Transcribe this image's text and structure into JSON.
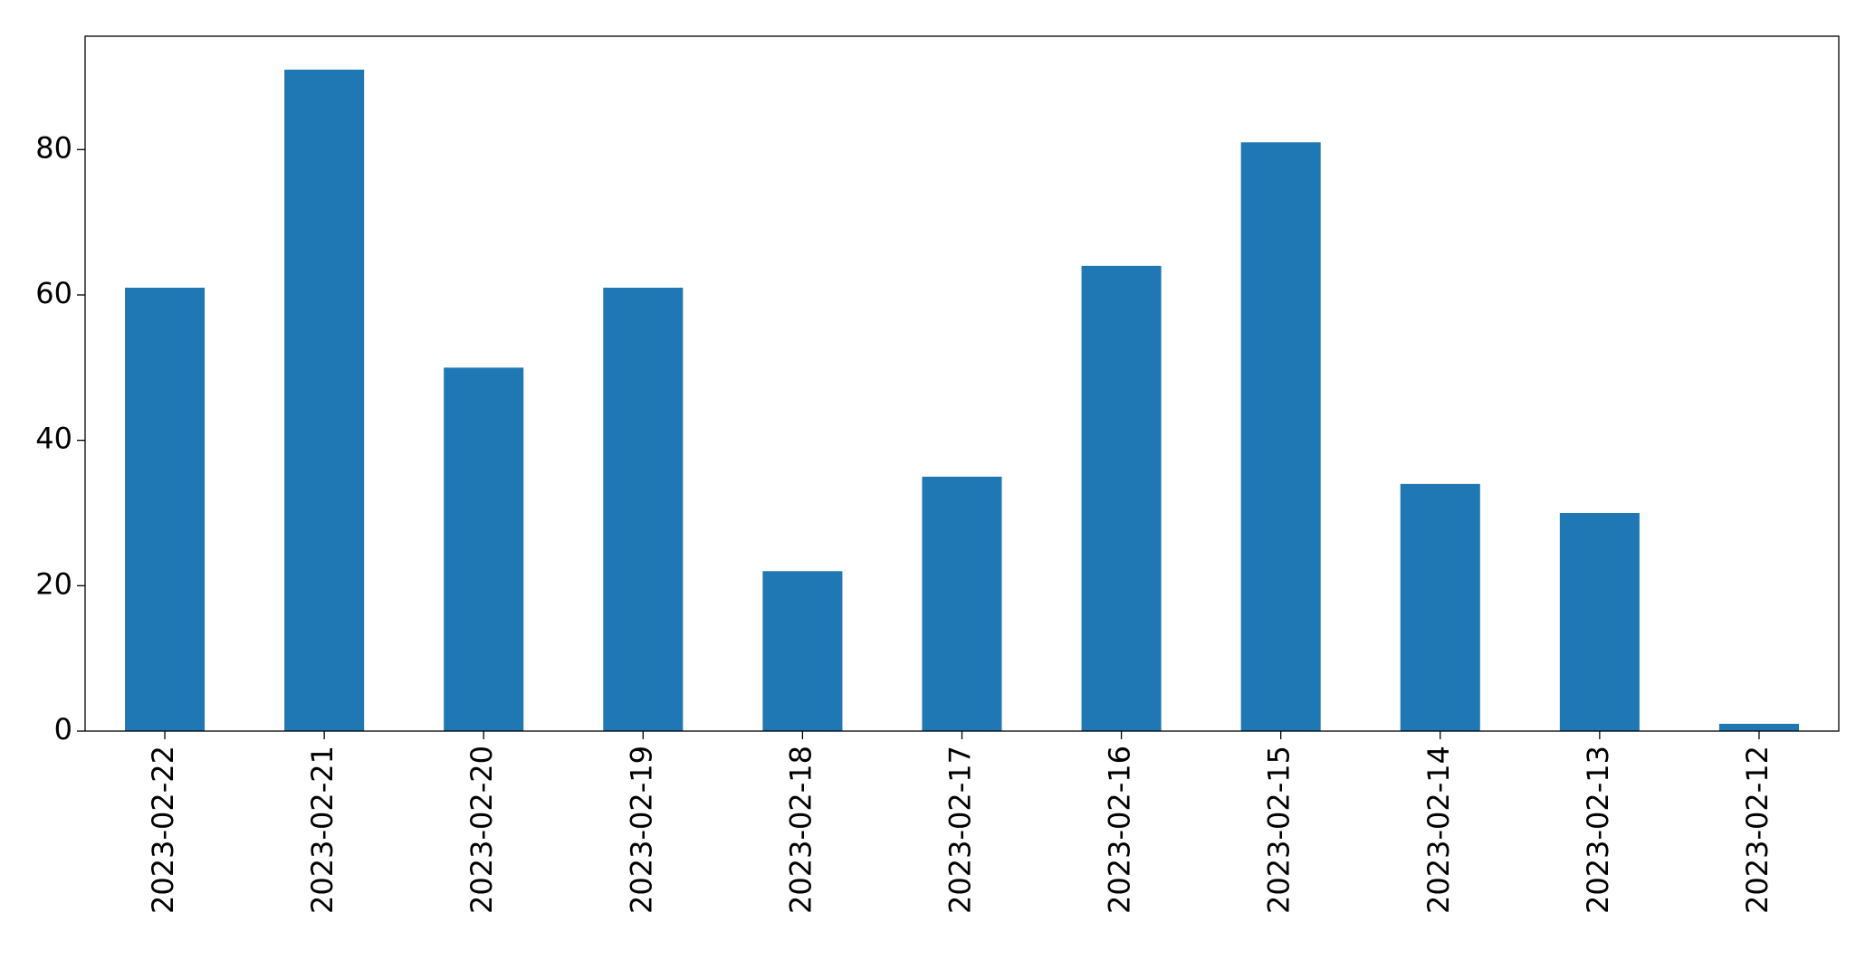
{
  "chart_data": {
    "type": "bar",
    "categories": [
      "2023-02-22",
      "2023-02-21",
      "2023-02-20",
      "2023-02-19",
      "2023-02-18",
      "2023-02-17",
      "2023-02-16",
      "2023-02-15",
      "2023-02-14",
      "2023-02-13",
      "2023-02-12"
    ],
    "values": [
      61,
      91,
      50,
      61,
      22,
      35,
      64,
      81,
      34,
      30,
      1
    ],
    "color": "#1f77b4",
    "ylim": [
      0,
      95.6
    ],
    "yticks": [
      0,
      20,
      40,
      60,
      80
    ],
    "grid": false
  }
}
